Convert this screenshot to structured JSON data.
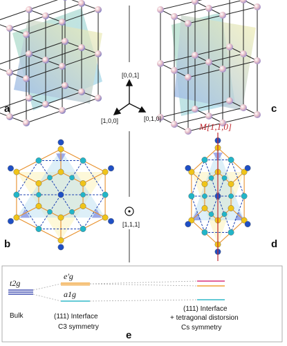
{
  "panels": {
    "a": "a",
    "b": "b",
    "c": "c",
    "d": "d",
    "e": "e"
  },
  "axes_top": {
    "z": "[0,0,1]",
    "x": "[1,0,0]",
    "y": "[0,1,0]"
  },
  "axes_bottom": {
    "dir": "[1,1,1]"
  },
  "mirror_label": "M[1̄,1,0]",
  "energy_levels": {
    "bulk_state": "t2g",
    "bulk_label": "Bulk",
    "eg_prime": "e'g",
    "a1g": "a1g",
    "interface1_line1": "(111) Interface",
    "interface1_sym": "C3 symmetry",
    "interface2_line1": "(111) Interface",
    "interface2_line2": "+ tetragonal distorsion",
    "interface2_sym": "Cs symmetry"
  },
  "colors": {
    "orange_bond": "#e8902a",
    "blue_dash": "#1a3fb0",
    "atom_yellow": "#f0c419",
    "atom_blue": "#1f4fc4",
    "atom_cyan": "#22b5c8",
    "mirror_red": "#c0282f",
    "level_orange": "#f0a030",
    "level_cyan": "#30b8c8",
    "level_magenta": "#d8307a"
  }
}
